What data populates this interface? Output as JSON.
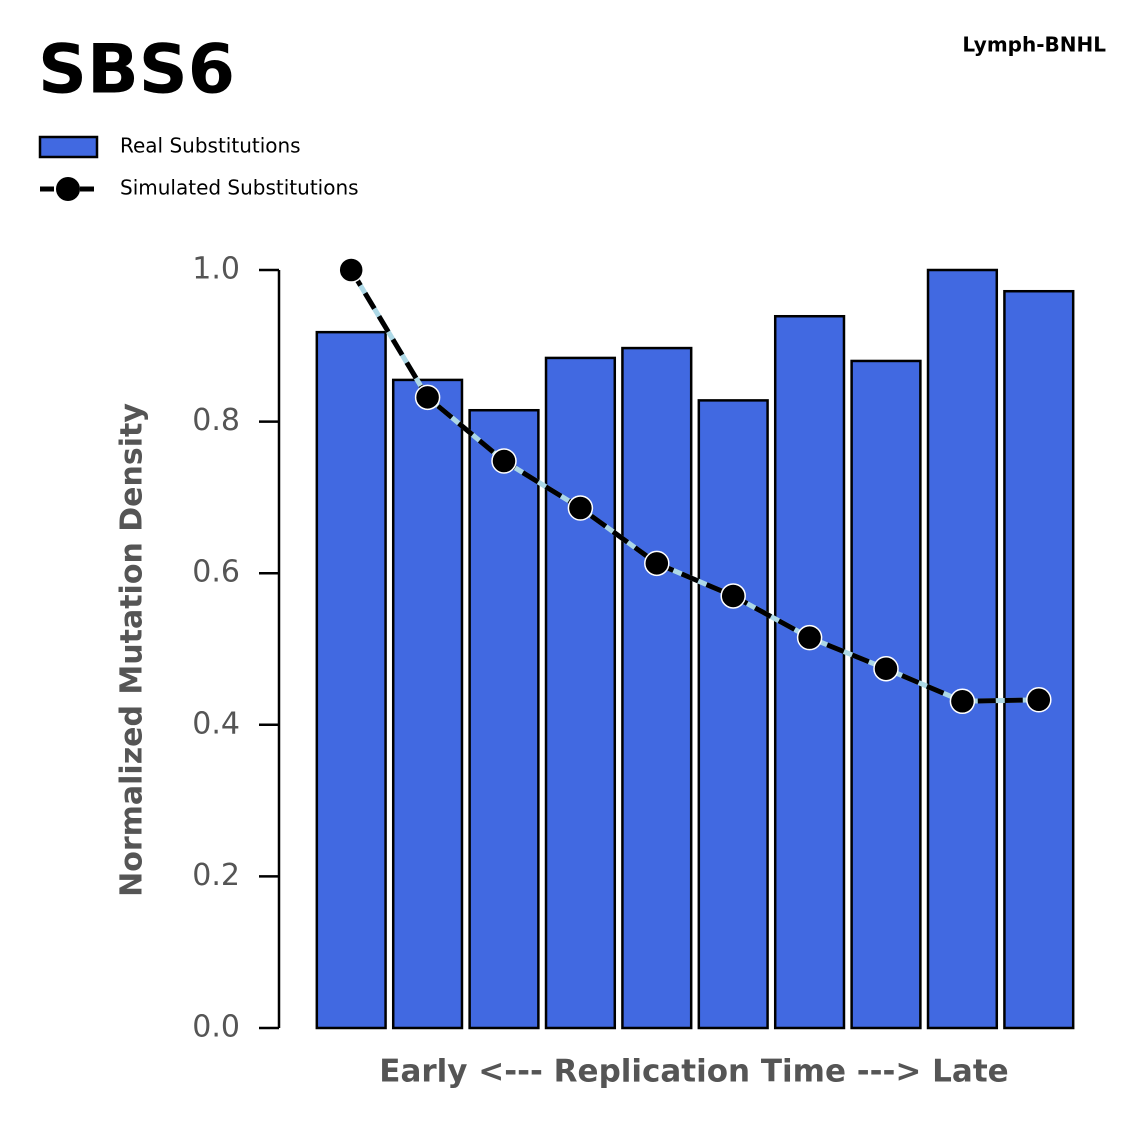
{
  "chart_data": {
    "type": "bar",
    "title": "SBS6",
    "subtitle": "Lymph-BNHL",
    "x_label": "Early <--- Replication Time ---> Late",
    "y_label": "Normalized Mutation Density",
    "categories": [
      null,
      null,
      null,
      null,
      null,
      null,
      null,
      null,
      null,
      null
    ],
    "series": [
      {
        "name": "Real Substitutions",
        "type": "bar",
        "color": "#4169e1",
        "values": [
          0.918,
          0.855,
          0.815,
          0.884,
          0.897,
          0.828,
          0.939,
          0.88,
          1.0,
          0.972
        ]
      },
      {
        "name": "Simulated Substitutions",
        "type": "line",
        "color": "#000000",
        "line_color": "#add8e6",
        "values": [
          1.0,
          0.832,
          0.748,
          0.686,
          0.613,
          0.57,
          0.515,
          0.474,
          0.431,
          0.433
        ]
      }
    ],
    "ylim": [
      0,
      1.0
    ],
    "yticks": [
      {
        "value": 0,
        "label": "0.0"
      },
      {
        "value": 0.2,
        "label": "0.2"
      },
      {
        "value": 0.4,
        "label": "0.4"
      },
      {
        "value": 0.6,
        "label": "0.6"
      },
      {
        "value": 0.8,
        "label": "0.8"
      },
      {
        "value": 1.0,
        "label": "1.0"
      }
    ]
  }
}
